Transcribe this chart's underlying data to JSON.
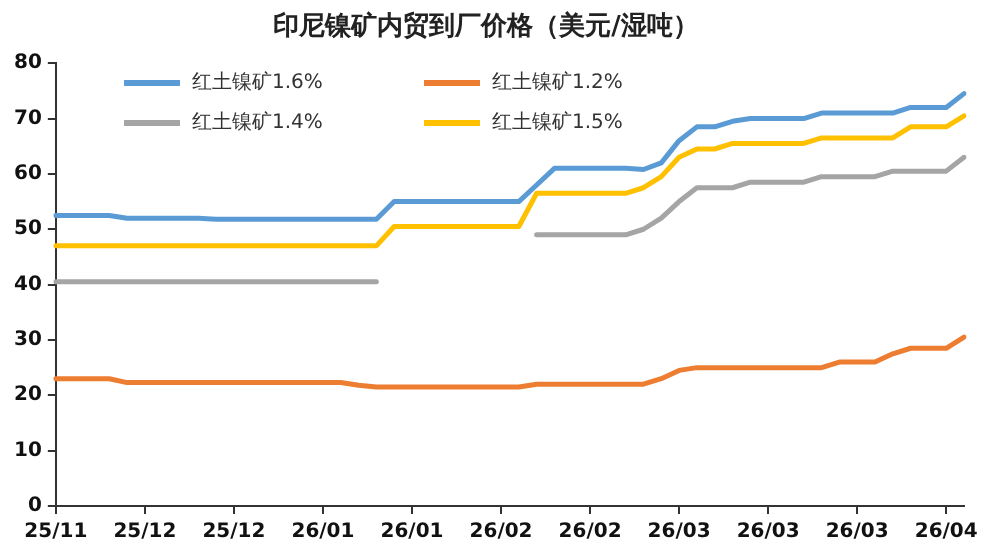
{
  "chart_data": {
    "type": "line",
    "title": "印尼镍矿内贸到厂价格（美元/湿吨）",
    "categories": [
      "25/11",
      null,
      null,
      null,
      null,
      "25/12",
      null,
      null,
      null,
      null,
      "25/12",
      null,
      null,
      null,
      null,
      "26/01",
      null,
      null,
      null,
      null,
      "26/01",
      null,
      null,
      null,
      null,
      "26/02",
      null,
      null,
      null,
      null,
      "26/02",
      null,
      null,
      null,
      null,
      "26/03",
      null,
      null,
      null,
      null,
      "26/03",
      null,
      null,
      null,
      null,
      "26/03",
      null,
      null,
      null,
      null,
      "26/04",
      null
    ],
    "series": [
      {
        "name": "红土镍矿1.6%",
        "color": "#5b9bd5",
        "values": [
          52.5,
          52.5,
          52.5,
          52.5,
          52,
          52,
          52,
          52,
          52,
          51.8,
          51.8,
          51.8,
          51.8,
          51.8,
          51.8,
          51.8,
          51.8,
          51.8,
          51.8,
          55,
          55,
          55,
          55,
          55,
          55,
          55,
          55,
          58,
          61,
          61,
          61,
          61,
          61,
          60.8,
          62,
          66,
          68.5,
          68.5,
          69.5,
          70,
          70,
          70,
          70,
          71,
          71,
          71,
          71,
          71,
          72,
          72,
          72,
          74.5
        ]
      },
      {
        "name": "红土镍矿1.2%",
        "color": "#ed7d31",
        "values": [
          23,
          23,
          23,
          23,
          22.3,
          22.3,
          22.3,
          22.3,
          22.3,
          22.3,
          22.3,
          22.3,
          22.3,
          22.3,
          22.3,
          22.3,
          22.3,
          21.8,
          21.5,
          21.5,
          21.5,
          21.5,
          21.5,
          21.5,
          21.5,
          21.5,
          21.5,
          22,
          22,
          22,
          22,
          22,
          22,
          22,
          23,
          24.5,
          25,
          25,
          25,
          25,
          25,
          25,
          25,
          25,
          26,
          26,
          26,
          27.5,
          28.5,
          28.5,
          28.5,
          30.5
        ]
      },
      {
        "name": "红土镍矿1.4%",
        "color": "#a5a5a5",
        "values": [
          40.5,
          40.5,
          40.5,
          40.5,
          40.5,
          40.5,
          40.5,
          40.5,
          40.5,
          40.5,
          40.5,
          40.5,
          40.5,
          40.5,
          40.5,
          40.5,
          40.5,
          40.5,
          40.5,
          null,
          null,
          null,
          null,
          null,
          null,
          null,
          null,
          49,
          49,
          49,
          49,
          49,
          49,
          50,
          52,
          55,
          57.5,
          57.5,
          57.5,
          58.5,
          58.5,
          58.5,
          58.5,
          59.5,
          59.5,
          59.5,
          59.5,
          60.5,
          60.5,
          60.5,
          60.5,
          63
        ]
      },
      {
        "name": "红土镍矿1.5%",
        "color": "#ffc000",
        "values": [
          47,
          47,
          47,
          47,
          47,
          47,
          47,
          47,
          47,
          47,
          47,
          47,
          47,
          47,
          47,
          47,
          47,
          47,
          47,
          50.5,
          50.5,
          50.5,
          50.5,
          50.5,
          50.5,
          50.5,
          50.5,
          56.5,
          56.5,
          56.5,
          56.5,
          56.5,
          56.5,
          57.5,
          59.5,
          63,
          64.5,
          64.5,
          65.5,
          65.5,
          65.5,
          65.5,
          65.5,
          66.5,
          66.5,
          66.5,
          66.5,
          66.5,
          68.5,
          68.5,
          68.5,
          70.5
        ]
      }
    ],
    "ylim": [
      0,
      80
    ],
    "yticks": [
      0,
      10,
      20,
      30,
      40,
      50,
      60,
      70,
      80
    ],
    "grid": false,
    "legend": "top",
    "marker": "none",
    "line_style": "solid"
  }
}
